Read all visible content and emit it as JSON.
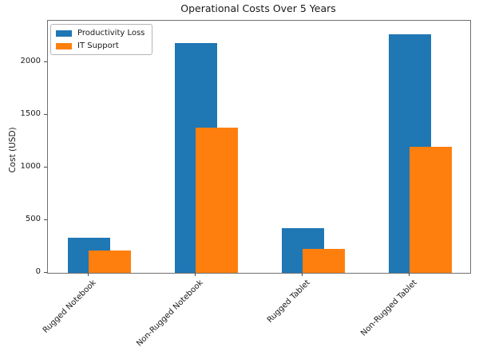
{
  "figure": {
    "title": "Operational Costs Over 5 Years",
    "ylabel": "Cost (USD)"
  },
  "legend": {
    "items": [
      {
        "label": "Productivity Loss",
        "color": "#1f77b4"
      },
      {
        "label": "IT Support",
        "color": "#ff7f0e"
      }
    ]
  },
  "chart_data": {
    "type": "bar",
    "title": "Operational Costs Over 5 Years",
    "xlabel": "",
    "ylabel": "Cost (USD)",
    "categories": [
      "Rugged Notebook",
      "Non-Rugged Notebook",
      "Rugged Tablet",
      "Non-Rugged Tablet"
    ],
    "series": [
      {
        "name": "Productivity Loss",
        "color": "#1f77b4",
        "values": [
          335,
          2180,
          425,
          2265
        ]
      },
      {
        "name": "IT Support",
        "color": "#ff7f0e",
        "values": [
          210,
          1375,
          225,
          1195
        ]
      }
    ],
    "ylim": [
      0,
      2390
    ],
    "yticks": [
      0,
      500,
      1000,
      1500,
      2000
    ],
    "grid": false,
    "legend_position": "upper left",
    "bar_style": "overlapped",
    "xtick_rotation": 45
  }
}
